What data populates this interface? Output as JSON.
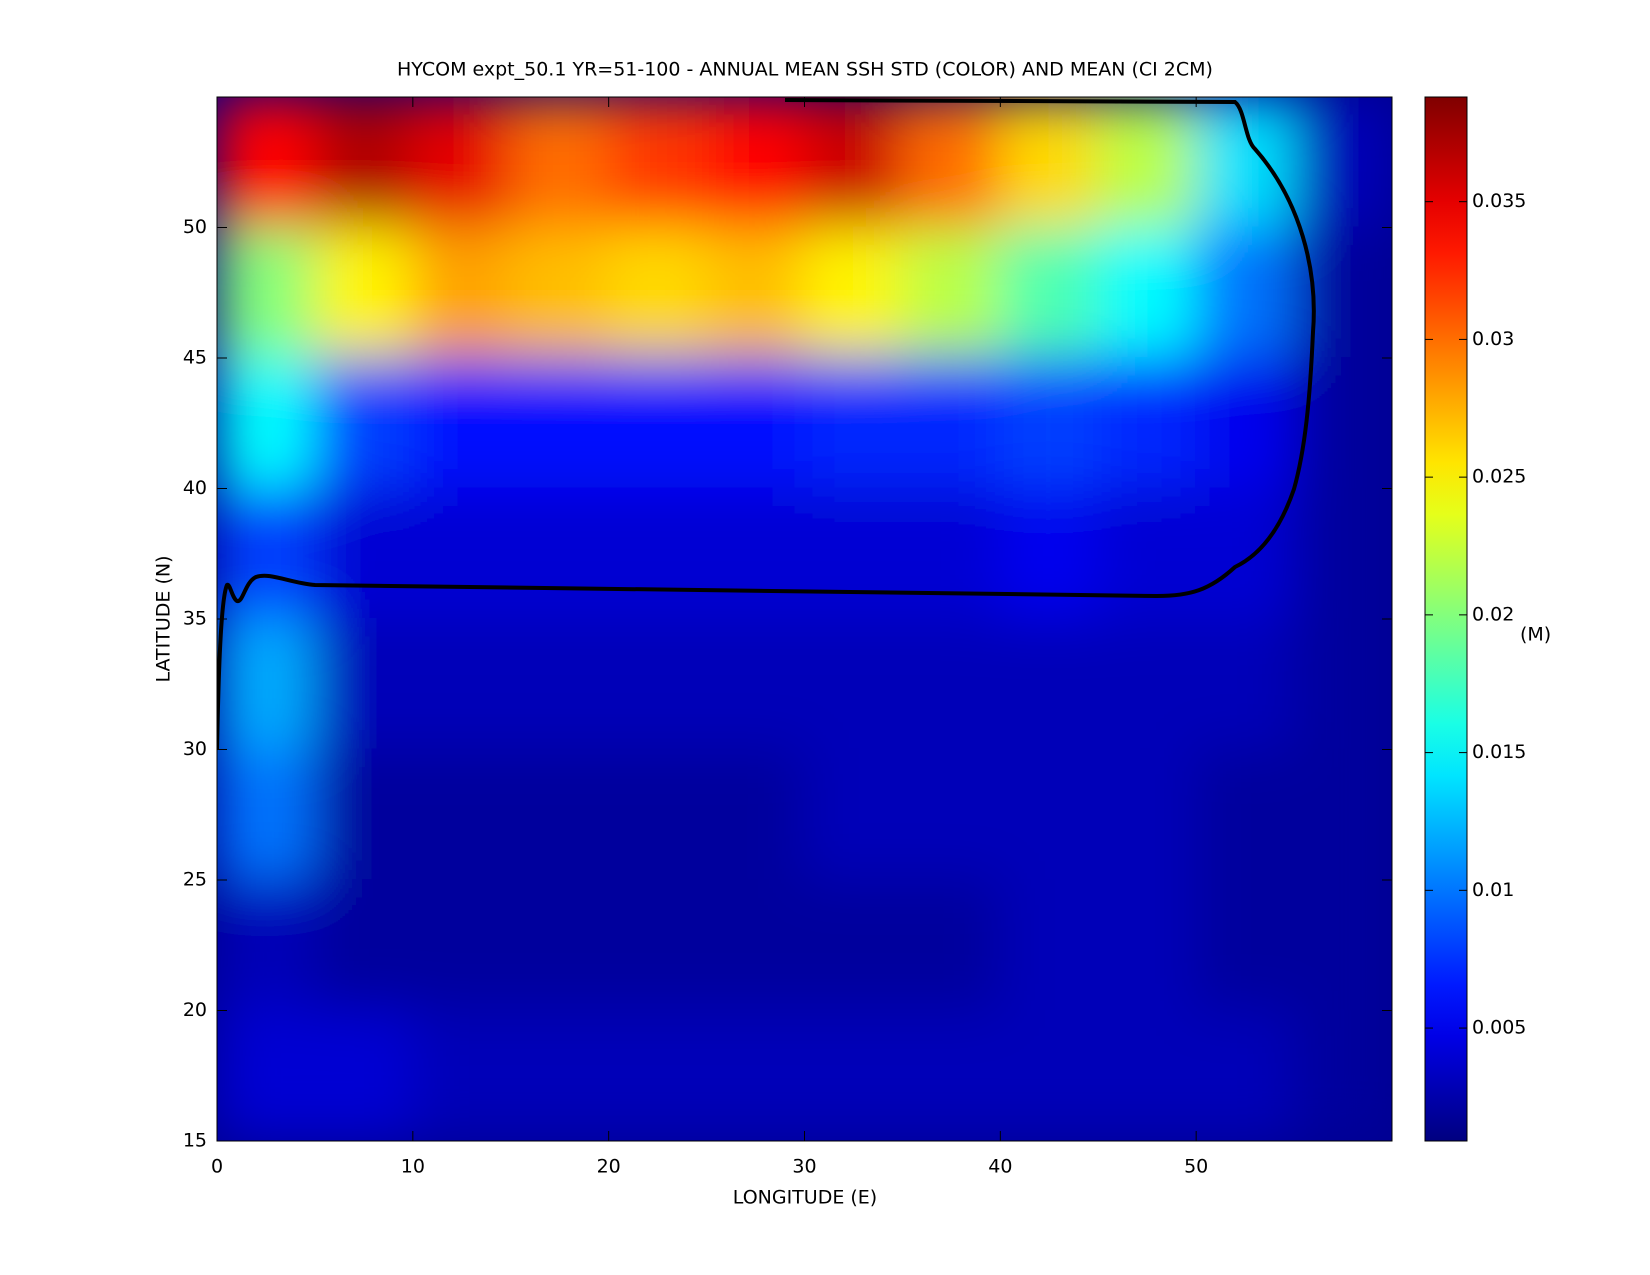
{
  "chart_data": {
    "type": "heatmap",
    "title": "HYCOM expt_50.1 YR=51-100 - ANNUAL MEAN SSH STD (COLOR) AND MEAN (CI 2CM)",
    "x_label": "LONGITUDE (E)",
    "y_label": "LATITUDE (N)",
    "xlim": [
      0,
      60
    ],
    "xticks": [
      0,
      10,
      20,
      30,
      40,
      50
    ],
    "ylim": [
      15,
      55
    ],
    "yticks": [
      15,
      20,
      25,
      30,
      35,
      40,
      45,
      50
    ],
    "x_bins": [
      0,
      5,
      10,
      15,
      20,
      25,
      30,
      35,
      40,
      45,
      50,
      55,
      60
    ],
    "y_bins": [
      55,
      50,
      45,
      40,
      35,
      30,
      25,
      20,
      15
    ],
    "z": [
      [
        0.034,
        0.037,
        0.035,
        0.03,
        0.032,
        0.034,
        0.036,
        0.03,
        0.026,
        0.022,
        0.014,
        0.003
      ],
      [
        0.02,
        0.025,
        0.028,
        0.027,
        0.026,
        0.027,
        0.025,
        0.022,
        0.018,
        0.015,
        0.01,
        0.002
      ],
      [
        0.015,
        0.008,
        0.006,
        0.006,
        0.006,
        0.006,
        0.007,
        0.007,
        0.008,
        0.007,
        0.005,
        0.002
      ],
      [
        0.008,
        0.004,
        0.004,
        0.004,
        0.004,
        0.004,
        0.004,
        0.004,
        0.005,
        0.004,
        0.004,
        0.002
      ],
      [
        0.012,
        0.003,
        0.003,
        0.003,
        0.003,
        0.003,
        0.003,
        0.003,
        0.003,
        0.003,
        0.003,
        0.002
      ],
      [
        0.01,
        0.002,
        0.002,
        0.002,
        0.002,
        0.002,
        0.003,
        0.003,
        0.003,
        0.003,
        0.002,
        0.002
      ],
      [
        0.003,
        0.002,
        0.002,
        0.002,
        0.002,
        0.002,
        0.002,
        0.002,
        0.003,
        0.003,
        0.002,
        0.002
      ],
      [
        0.004,
        0.004,
        0.003,
        0.003,
        0.003,
        0.003,
        0.003,
        0.003,
        0.003,
        0.003,
        0.003,
        0.002
      ]
    ],
    "colormap": "jet",
    "clim": [
      0.0009,
      0.0388
    ],
    "cticks": [
      0.005,
      0.01,
      0.015,
      0.02,
      0.025,
      0.03,
      0.035
    ],
    "colorbar_label": "(M)"
  }
}
